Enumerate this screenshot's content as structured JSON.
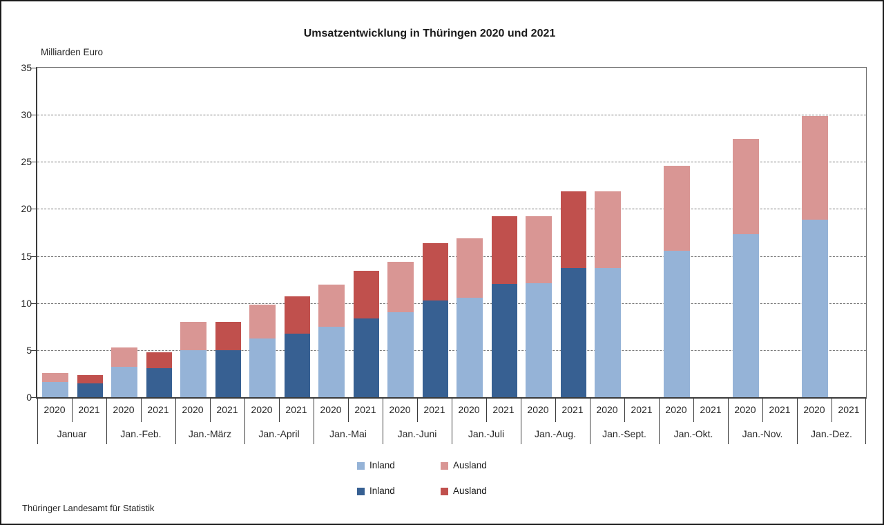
{
  "title": "Umsatzentwicklung in Thüringen 2020 und 2021",
  "y_axis_unit": "Milliarden Euro",
  "footer": "Thüringer Landesamt für Statistik",
  "legend": {
    "rows": [
      {
        "items": [
          {
            "label": "Inland",
            "color": "#95B3D7"
          },
          {
            "label": "Ausland",
            "color": "#D99694"
          }
        ]
      },
      {
        "items": [
          {
            "label": "Inland",
            "color": "#376092"
          },
          {
            "label": "Ausland",
            "color": "#C0504D"
          }
        ]
      }
    ]
  },
  "chart_data": {
    "type": "bar",
    "stacked": true,
    "title": "Umsatzentwicklung in Thüringen 2020 und 2021",
    "ylabel": "Milliarden Euro",
    "ylim": [
      0,
      35
    ],
    "ytick_step": 5,
    "grid": "horizontal-dashed",
    "legend_position": "bottom-center",
    "categories": [
      "Januar",
      "Jan.-Feb.",
      "Jan.-März",
      "Jan.-April",
      "Jan.-Mai",
      "Jan.-Juni",
      "Jan.-Juli",
      "Jan.-Aug.",
      "Jan.-Sept.",
      "Jan.-Okt.",
      "Jan.-Nov.",
      "Jan.-Dez."
    ],
    "bar_years": [
      "2020",
      "2021"
    ],
    "series": [
      {
        "name": "Inland",
        "year": "2020",
        "color": "#95B3D7",
        "values": [
          1.6,
          3.25,
          5.0,
          6.25,
          7.5,
          9.05,
          10.55,
          12.1,
          13.75,
          15.55,
          17.35,
          18.85
        ]
      },
      {
        "name": "Ausland",
        "year": "2020",
        "color": "#D99694",
        "values": [
          1.0,
          2.05,
          3.0,
          3.6,
          4.45,
          5.35,
          6.35,
          7.15,
          8.15,
          9.0,
          10.1,
          11.0
        ]
      },
      {
        "name": "Inland",
        "year": "2021",
        "color": "#376092",
        "values": [
          1.45,
          3.05,
          5.0,
          6.75,
          8.4,
          10.3,
          12.0,
          13.7,
          null,
          null,
          null,
          null
        ]
      },
      {
        "name": "Ausland",
        "year": "2021",
        "color": "#C0504D",
        "values": [
          0.9,
          1.75,
          3.0,
          4.0,
          5.0,
          6.1,
          7.25,
          8.2,
          null,
          null,
          null,
          null
        ]
      }
    ]
  }
}
